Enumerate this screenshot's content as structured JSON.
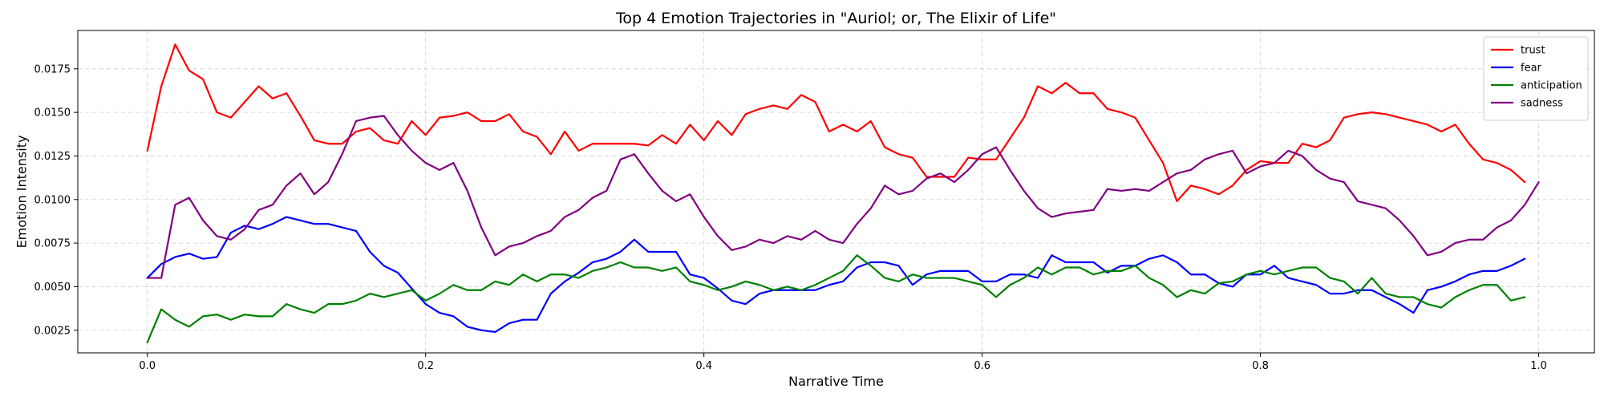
{
  "chart_data": {
    "type": "line",
    "title": "Top 4 Emotion Trajectories in \"Auriol; or, The Elixir of Life\"",
    "xlabel": "Narrative Time",
    "ylabel": "Emotion Intensity",
    "xlim": [
      -0.05,
      1.04
    ],
    "ylim": [
      0.0012,
      0.0197
    ],
    "xticks": [
      0.0,
      0.2,
      0.4,
      0.6,
      0.8,
      1.0
    ],
    "xtick_labels": [
      "0.0",
      "0.2",
      "0.4",
      "0.6",
      "0.8",
      "1.0"
    ],
    "yticks": [
      0.0025,
      0.005,
      0.0075,
      0.01,
      0.0125,
      0.015,
      0.0175
    ],
    "ytick_labels": [
      "0.0025",
      "0.0050",
      "0.0075",
      "0.0100",
      "0.0125",
      "0.0150",
      "0.0175"
    ],
    "grid": true,
    "legend_position": "top-right",
    "x_start": 0.0,
    "x_step": 0.01,
    "series": [
      {
        "name": "trust",
        "color": "#ff0000",
        "values": [
          0.0128,
          0.0165,
          0.0189,
          0.0174,
          0.0169,
          0.015,
          0.0147,
          0.0156,
          0.0165,
          0.0158,
          0.0161,
          0.0148,
          0.0134,
          0.0132,
          0.0132,
          0.0139,
          0.0141,
          0.0134,
          0.0132,
          0.0145,
          0.0137,
          0.0147,
          0.0148,
          0.015,
          0.0145,
          0.0145,
          0.0149,
          0.0139,
          0.0136,
          0.0126,
          0.0139,
          0.0128,
          0.0132,
          0.0132,
          0.0132,
          0.0132,
          0.0131,
          0.0137,
          0.0132,
          0.0143,
          0.0134,
          0.0145,
          0.0137,
          0.0149,
          0.0152,
          0.0154,
          0.0152,
          0.016,
          0.0156,
          0.0139,
          0.0143,
          0.0139,
          0.0145,
          0.013,
          0.0126,
          0.0124,
          0.0113,
          0.0113,
          0.0113,
          0.0124,
          0.0123,
          0.0123,
          0.0135,
          0.0147,
          0.0165,
          0.0161,
          0.0167,
          0.0161,
          0.0161,
          0.0152,
          0.015,
          0.0147,
          0.0134,
          0.0121,
          0.0099,
          0.0108,
          0.0106,
          0.0103,
          0.0108,
          0.0117,
          0.0122,
          0.0121,
          0.0121,
          0.0132,
          0.013,
          0.0134,
          0.0147,
          0.0149,
          0.015,
          0.0149,
          0.0147,
          0.0145,
          0.0143,
          0.0139,
          0.0143,
          0.0132,
          0.0123,
          0.0121,
          0.0117,
          0.011
        ]
      },
      {
        "name": "fear",
        "color": "#0000ff",
        "values": [
          0.0055,
          0.0063,
          0.0067,
          0.0069,
          0.0066,
          0.0067,
          0.0081,
          0.0085,
          0.0083,
          0.0086,
          0.009,
          0.0088,
          0.0086,
          0.0086,
          0.0084,
          0.0082,
          0.007,
          0.0062,
          0.0058,
          0.0049,
          0.004,
          0.0035,
          0.0033,
          0.0027,
          0.0025,
          0.0024,
          0.0029,
          0.0031,
          0.0031,
          0.0046,
          0.0053,
          0.0058,
          0.0064,
          0.0066,
          0.007,
          0.0077,
          0.007,
          0.007,
          0.007,
          0.0057,
          0.0055,
          0.0049,
          0.0042,
          0.004,
          0.0046,
          0.0048,
          0.0048,
          0.0048,
          0.0048,
          0.0051,
          0.0053,
          0.0061,
          0.0064,
          0.0064,
          0.0062,
          0.0051,
          0.0057,
          0.0059,
          0.0059,
          0.0059,
          0.0053,
          0.0053,
          0.0057,
          0.0057,
          0.0055,
          0.0068,
          0.0064,
          0.0064,
          0.0064,
          0.0058,
          0.0062,
          0.0062,
          0.0066,
          0.0068,
          0.0064,
          0.0057,
          0.0057,
          0.0052,
          0.005,
          0.0057,
          0.0057,
          0.0062,
          0.0055,
          0.0053,
          0.0051,
          0.0046,
          0.0046,
          0.0048,
          0.0048,
          0.0044,
          0.004,
          0.0035,
          0.0048,
          0.005,
          0.0053,
          0.0057,
          0.0059,
          0.0059,
          0.0062,
          0.0066
        ]
      },
      {
        "name": "anticipation",
        "color": "#008000",
        "values": [
          0.0018,
          0.0037,
          0.0031,
          0.0027,
          0.0033,
          0.0034,
          0.0031,
          0.0034,
          0.0033,
          0.0033,
          0.004,
          0.0037,
          0.0035,
          0.004,
          0.004,
          0.0042,
          0.0046,
          0.0044,
          0.0046,
          0.0048,
          0.0042,
          0.0046,
          0.0051,
          0.0048,
          0.0048,
          0.0053,
          0.0051,
          0.0057,
          0.0053,
          0.0057,
          0.0057,
          0.0055,
          0.0059,
          0.0061,
          0.0064,
          0.0061,
          0.0061,
          0.0059,
          0.0061,
          0.0053,
          0.0051,
          0.0048,
          0.005,
          0.0053,
          0.0051,
          0.0048,
          0.005,
          0.0048,
          0.0051,
          0.0055,
          0.0059,
          0.0068,
          0.0062,
          0.0055,
          0.0053,
          0.0057,
          0.0055,
          0.0055,
          0.0055,
          0.0053,
          0.0051,
          0.0044,
          0.0051,
          0.0055,
          0.0061,
          0.0057,
          0.0061,
          0.0061,
          0.0057,
          0.0059,
          0.0059,
          0.0062,
          0.0055,
          0.0051,
          0.0044,
          0.0048,
          0.0046,
          0.0052,
          0.0053,
          0.0057,
          0.0059,
          0.0057,
          0.0059,
          0.0061,
          0.0061,
          0.0055,
          0.0053,
          0.0046,
          0.0055,
          0.0046,
          0.0044,
          0.0044,
          0.004,
          0.0038,
          0.0044,
          0.0048,
          0.0051,
          0.0051,
          0.0042,
          0.0044
        ]
      },
      {
        "name": "sadness",
        "color": "#800080",
        "values": [
          0.0055,
          0.0055,
          0.0097,
          0.0101,
          0.0088,
          0.0079,
          0.0077,
          0.0083,
          0.0094,
          0.0097,
          0.0108,
          0.0115,
          0.0103,
          0.011,
          0.0126,
          0.0145,
          0.0147,
          0.0148,
          0.0137,
          0.0128,
          0.0121,
          0.0117,
          0.0121,
          0.0105,
          0.0084,
          0.0068,
          0.0073,
          0.0075,
          0.0079,
          0.0082,
          0.009,
          0.0094,
          0.0101,
          0.0105,
          0.0123,
          0.0126,
          0.0115,
          0.0105,
          0.0099,
          0.0103,
          0.009,
          0.0079,
          0.0071,
          0.0073,
          0.0077,
          0.0075,
          0.0079,
          0.0077,
          0.0082,
          0.0077,
          0.0075,
          0.0086,
          0.0095,
          0.0108,
          0.0103,
          0.0105,
          0.0112,
          0.0115,
          0.011,
          0.0117,
          0.0126,
          0.013,
          0.0117,
          0.0105,
          0.0095,
          0.009,
          0.0092,
          0.0093,
          0.0094,
          0.0106,
          0.0105,
          0.0106,
          0.0105,
          0.011,
          0.0115,
          0.0117,
          0.0123,
          0.0126,
          0.0128,
          0.0115,
          0.0119,
          0.0121,
          0.0128,
          0.0125,
          0.0117,
          0.0112,
          0.011,
          0.0099,
          0.0097,
          0.0095,
          0.0088,
          0.0079,
          0.0068,
          0.007,
          0.0075,
          0.0077,
          0.0077,
          0.0084,
          0.0088,
          0.0097,
          0.011
        ]
      }
    ]
  }
}
